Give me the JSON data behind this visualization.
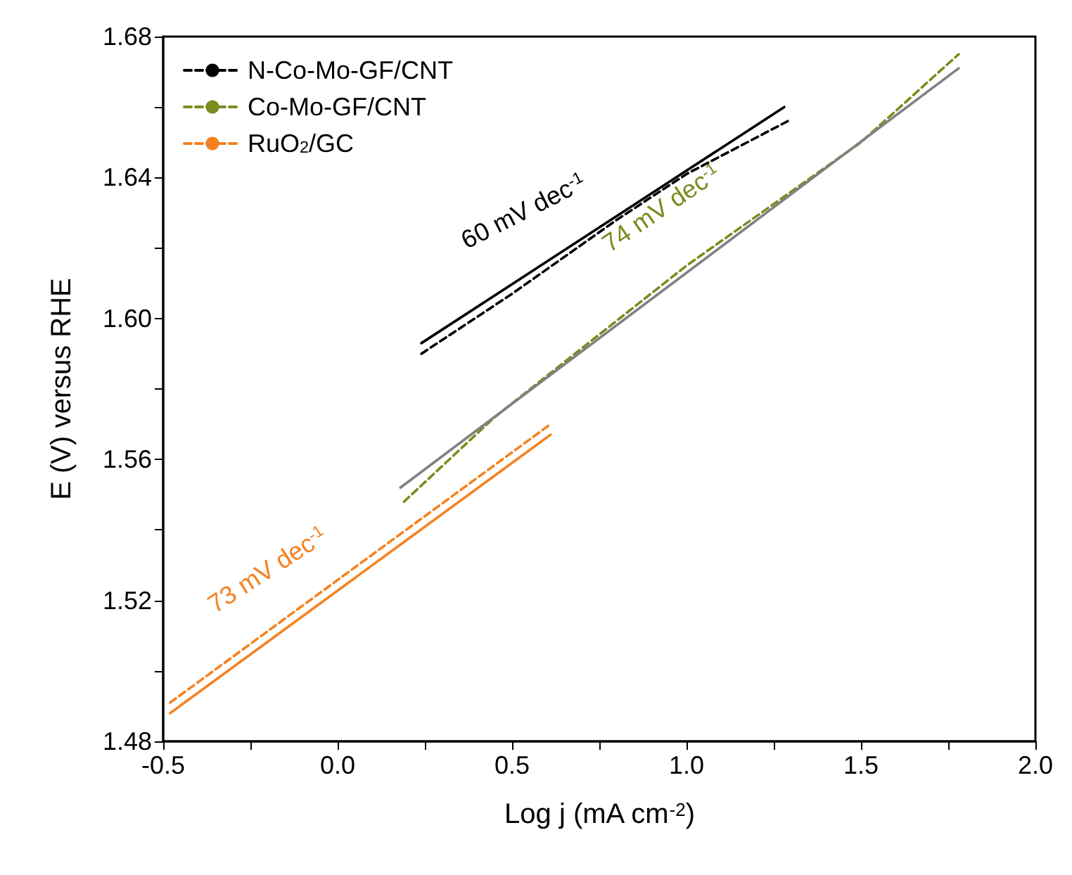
{
  "chart_data": {
    "type": "line",
    "xlabel": "Log j (mA cm$^{-2}$)",
    "ylabel": "E (V) versus RHE",
    "xlim": [
      -0.5,
      2.0
    ],
    "ylim": [
      1.48,
      1.68
    ],
    "xticks": [
      {
        "value": -0.5,
        "label": "-0.5"
      },
      {
        "value": -0.25,
        "label": null
      },
      {
        "value": 0,
        "label": "0.0"
      },
      {
        "value": 0.25,
        "label": null
      },
      {
        "value": 0.5,
        "label": "0.5"
      },
      {
        "value": 0.75,
        "label": null
      },
      {
        "value": 1,
        "label": "1.0"
      },
      {
        "value": 1.25,
        "label": null
      },
      {
        "value": 1.5,
        "label": "1.5"
      },
      {
        "value": 1.75,
        "label": null
      },
      {
        "value": 2,
        "label": "2.0"
      }
    ],
    "yticks": [
      1.48,
      {
        "value": 1.5,
        "label": null
      },
      1.52,
      {
        "value": 1.54,
        "label": null
      },
      1.56,
      {
        "value": 1.58,
        "label": null
      },
      {
        "value": 1.6,
        "label": "1.60"
      },
      {
        "value": 1.62,
        "label": null
      },
      1.64,
      {
        "value": 1.66,
        "label": null
      },
      1.68
    ],
    "legend": "top left",
    "marker": "none",
    "grid": false,
    "series": [
      {
        "name": "N-Co-Mo-GF/CNT",
        "color": "#000000",
        "line_style": "dashed",
        "x": [
          0.24,
          0.5,
          0.8,
          1.0,
          1.29
        ],
        "values": [
          1.59,
          1.607,
          1.628,
          1.641,
          1.656
        ]
      },
      {
        "name": "Co-Mo-GF/CNT",
        "color": "#7a8c1e",
        "line_style": "dashed",
        "x": [
          0.19,
          0.45,
          1.0,
          1.5,
          1.78
        ],
        "values": [
          1.548,
          1.572,
          1.615,
          1.65,
          1.675
        ]
      },
      {
        "name": "RuO$_{2}$/GC",
        "color": "#f58220",
        "line_style": "dashed",
        "x": [
          -0.48,
          0.61
        ],
        "values": [
          1.491,
          1.57
        ]
      },
      {
        "color": "#000000",
        "line_style": "solid",
        "x": [
          0.24,
          1.28
        ],
        "values": [
          1.593,
          1.66
        ]
      },
      {
        "color": "#808080",
        "line_style": "solid",
        "x": [
          0.18,
          1.78
        ],
        "values": [
          1.552,
          1.671
        ]
      },
      {
        "color": "#f58220",
        "line_style": "solid",
        "x": [
          -0.48,
          0.61
        ],
        "values": [
          1.488,
          1.567
        ]
      }
    ],
    "annotations": [
      "60 mV dec$^{-1}$",
      "74 mV dec$^{-1}$",
      "73 mV dec$^{-1}$"
    ]
  }
}
